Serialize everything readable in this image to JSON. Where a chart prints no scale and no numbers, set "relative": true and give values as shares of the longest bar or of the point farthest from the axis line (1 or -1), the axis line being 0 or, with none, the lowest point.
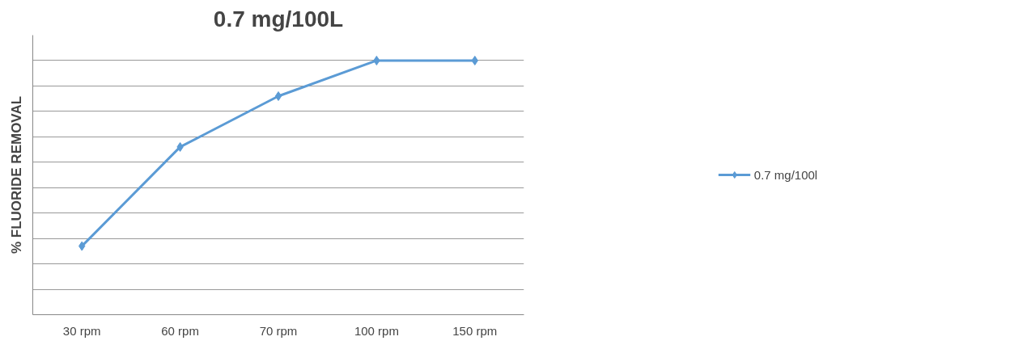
{
  "chart_data": {
    "type": "line",
    "title": "0.7 mg/100L",
    "ylabel": "% FLUORIDE REMOVAL",
    "categories": [
      "30 rpm",
      "60 rpm",
      "70 rpm",
      "100 rpm",
      "150 rpm"
    ],
    "series": [
      {
        "name": "0.7 mg/100l",
        "color": "#5b9bd5",
        "values": [
          0.27,
          0.66,
          0.86,
          1,
          1
        ]
      }
    ],
    "relative": true,
    "grid": "y",
    "legend": "right",
    "marker": "diamond",
    "line_style": "solid"
  }
}
